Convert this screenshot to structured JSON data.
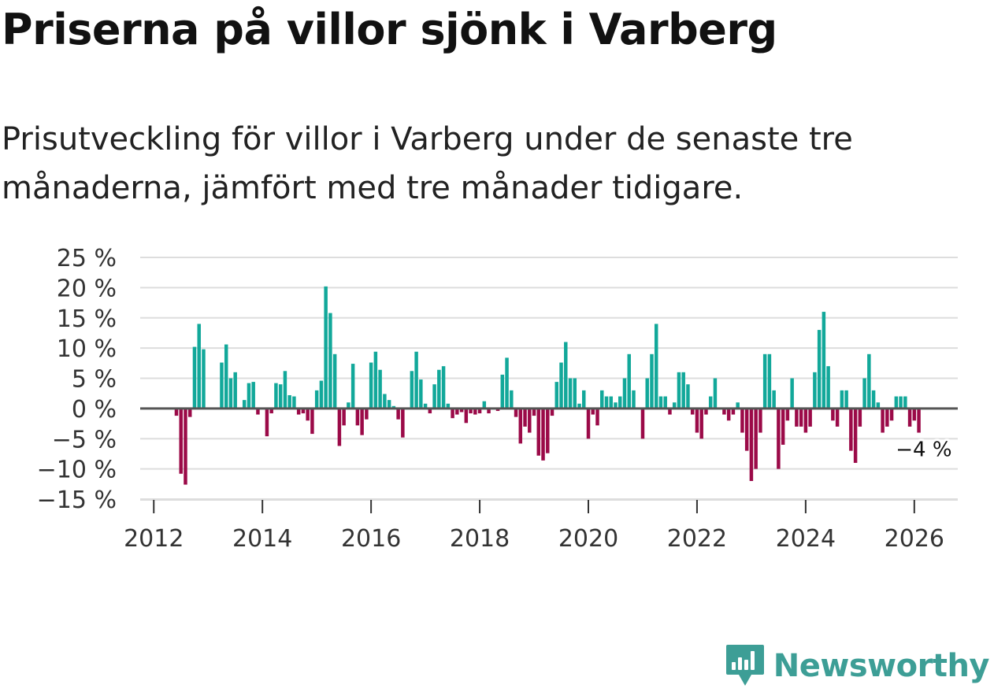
{
  "title": "Priserna på villor sjönk i Varberg",
  "subtitle": "Prisutveckling för villor i Varberg under de senaste tre månaderna, jämfört med tre månader tidigare.",
  "colors": {
    "positive": "#12a89a",
    "negative": "#9b0a48",
    "grid": "#dddddd",
    "zero_line": "#555555",
    "text": "#333333",
    "brand": "#3d9e96"
  },
  "chart_data": {
    "type": "bar",
    "title": "Priserna på villor sjönk i Varberg",
    "xlabel": "",
    "ylabel": "",
    "ylim": [
      -15,
      25
    ],
    "xlim": [
      2011.75,
      2026.8
    ],
    "grid": true,
    "legend": "none",
    "y_ticks": [
      {
        "value": 25,
        "label": "25 %"
      },
      {
        "value": 20,
        "label": "20 %"
      },
      {
        "value": 15,
        "label": "15 %"
      },
      {
        "value": 10,
        "label": "10 %"
      },
      {
        "value": 5,
        "label": "5 %"
      },
      {
        "value": 0,
        "label": "0 %"
      },
      {
        "value": -5,
        "label": "−5 %"
      },
      {
        "value": -10,
        "label": "−10 %"
      },
      {
        "value": -15,
        "label": "−15 %"
      }
    ],
    "x_ticks": [
      {
        "value": 2012,
        "label": "2012"
      },
      {
        "value": 2014,
        "label": "2014"
      },
      {
        "value": 2016,
        "label": "2016"
      },
      {
        "value": 2018,
        "label": "2018"
      },
      {
        "value": 2020,
        "label": "2020"
      },
      {
        "value": 2022,
        "label": "2022"
      },
      {
        "value": 2024,
        "label": "2024"
      },
      {
        "value": 2026,
        "label": "2026"
      }
    ],
    "start": {
      "year": 2012,
      "month": 1
    },
    "frequency": "monthly",
    "values": [
      0,
      0,
      0,
      0,
      0,
      -1.2,
      -10.8,
      -12.6,
      -1.4,
      10.2,
      14,
      9.8,
      0,
      0,
      0,
      7.6,
      10.6,
      5,
      6,
      0,
      1.4,
      4.2,
      4.4,
      -1,
      0,
      -4.6,
      -0.8,
      4.2,
      4,
      6.2,
      2.2,
      2,
      -1,
      -0.8,
      -2,
      -4.2,
      3,
      4.6,
      20.2,
      15.8,
      9,
      -6.2,
      -2.8,
      1,
      7.4,
      -2.8,
      -4.4,
      -1.8,
      7.6,
      9.4,
      6.4,
      2.4,
      1.4,
      0.4,
      -1.8,
      -4.8,
      0,
      6.2,
      9.4,
      4.8,
      0.8,
      -0.8,
      4,
      6.4,
      7,
      0.8,
      -1.6,
      -1,
      -0.6,
      -2.4,
      -0.8,
      -1,
      -0.8,
      1.2,
      -0.8,
      0,
      -0.4,
      5.6,
      8.4,
      3,
      -1.4,
      -5.8,
      -3,
      -4,
      -1.2,
      -7.8,
      -8.6,
      -7.4,
      -1.2,
      4.4,
      7.6,
      11,
      5,
      5,
      0.8,
      3,
      -5,
      -1,
      -2.8,
      3,
      2,
      2,
      1,
      2,
      5,
      9,
      3,
      0,
      -5,
      5,
      9,
      14,
      2,
      2,
      -1,
      1,
      6,
      6,
      4,
      -1,
      -4,
      -5,
      -1,
      2,
      5,
      0,
      -1,
      -2,
      -1,
      1,
      -4,
      -7,
      -12,
      -10,
      -4,
      9,
      9,
      3,
      -10,
      -6,
      -2,
      5,
      -3,
      -3,
      -4,
      -3,
      6,
      13,
      16,
      7,
      -2,
      -3,
      3,
      3,
      -7,
      -9,
      -3,
      5,
      9,
      3,
      1,
      -4,
      -3,
      -2,
      2,
      2,
      2,
      -3,
      -2,
      -4
    ],
    "annotation": {
      "label": "−4 %",
      "year": 2026,
      "month": 2,
      "value": -4
    }
  },
  "brand": {
    "name": "Newsworthy",
    "logo_icon": "newsworthy-chart-icon"
  }
}
